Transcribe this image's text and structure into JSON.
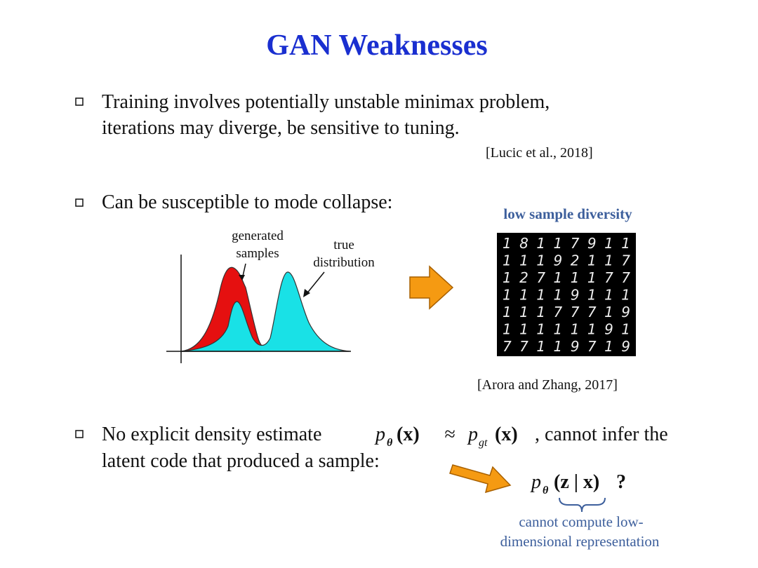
{
  "header": {
    "title": "GAN Weaknesses"
  },
  "bullets": [
    {
      "lines": [
        "Training involves potentially unstable minimax problem,",
        "iterations may diverge, be sensitive to tuning."
      ],
      "citation": "[Lucic et al., 2018]"
    },
    {
      "lines": [
        "Can be susceptible to mode collapse:"
      ],
      "citation": "[Arora and Zhang, 2017]"
    },
    {
      "lines": [
        "No explicit density estimate",
        ", cannot infer the",
        "latent code that produced a sample:"
      ]
    }
  ],
  "figure": {
    "generated_label": [
      "generated",
      "samples"
    ],
    "true_label": [
      "true",
      "distribution"
    ],
    "samples_caption": "low sample diversity",
    "digit_rows": [
      "18117911",
      "11192117",
      "12711177",
      "11119111",
      "11177719",
      "11111191",
      "77119719"
    ]
  },
  "math": {
    "density": {
      "lhs_base": "p",
      "lhs_sub": "θ",
      "lhs_arg": "(x)",
      "op": "≈",
      "rhs_base": "p",
      "rhs_sub": "gt",
      "rhs_arg": "(x)"
    },
    "posterior": {
      "base": "p",
      "sub": "θ",
      "arg": "(z | x)",
      "mark": "?"
    },
    "note": [
      "cannot compute low-",
      "dimensional representation"
    ]
  }
}
